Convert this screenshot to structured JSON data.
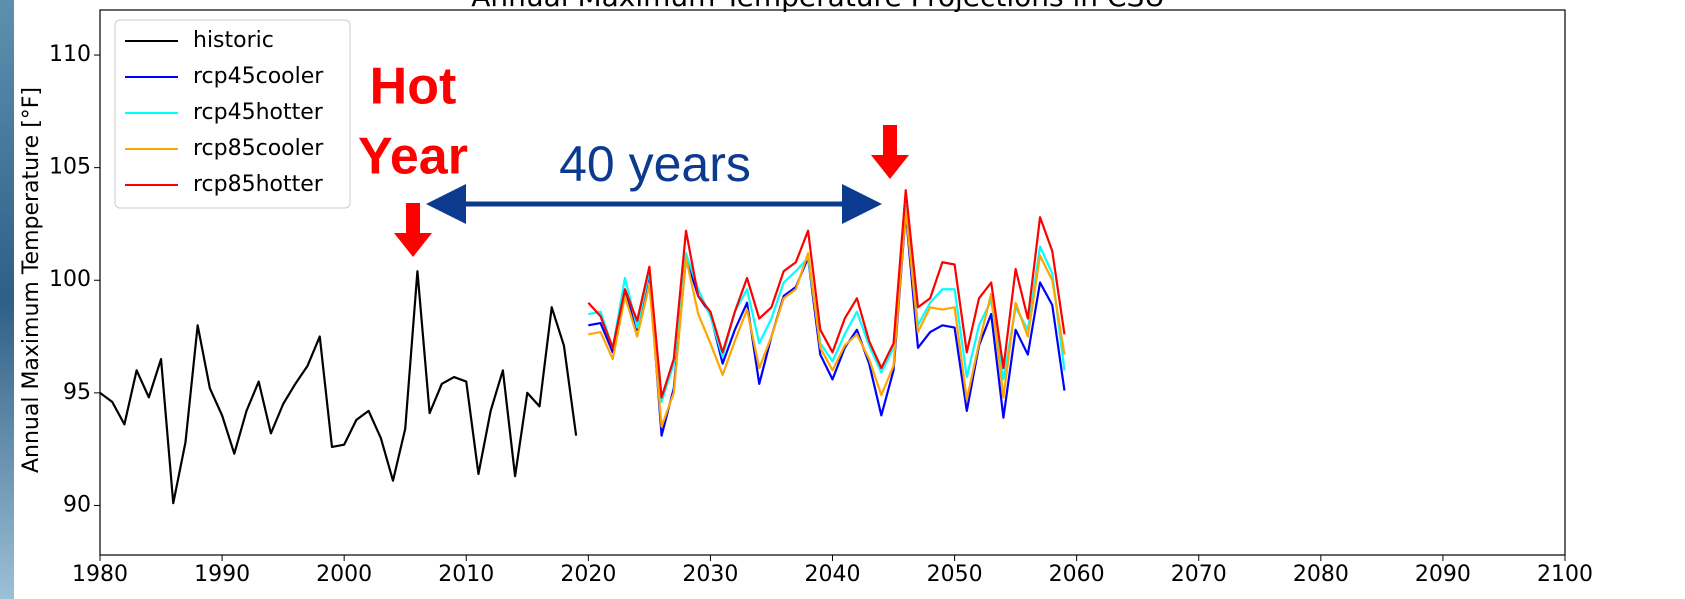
{
  "chart_data": {
    "type": "line",
    "title": "Annual Maximum Temperature Projections in CSU",
    "y_label": "Annual Maximum Temperature [°F]",
    "annotations": [
      "Hot",
      "Year",
      "40 years"
    ],
    "x": [
      1980,
      1981,
      1982,
      1983,
      1984,
      1985,
      1986,
      1987,
      1988,
      1989,
      1990,
      1991,
      1992,
      1993,
      1994,
      1995,
      1996,
      1997,
      1998,
      1999,
      2000,
      2001,
      2002,
      2003,
      2004,
      2005,
      2006,
      2007,
      2008,
      2009,
      2010,
      2011,
      2012,
      2013,
      2014,
      2015,
      2016,
      2017,
      2018,
      2019,
      2020,
      2021,
      2022,
      2023,
      2024,
      2025,
      2026,
      2027,
      2028,
      2029,
      2030,
      2031,
      2032,
      2033,
      2034,
      2035,
      2036,
      2037,
      2038,
      2039,
      2040,
      2041,
      2042,
      2043,
      2044,
      2045,
      2046,
      2047,
      2048,
      2049,
      2050,
      2051,
      2052,
      2053,
      2054,
      2055,
      2056,
      2057,
      2058,
      2059
    ],
    "series": [
      {
        "name": "historic",
        "color": "#000000",
        "values": [
          95.0,
          94.6,
          93.6,
          96.0,
          94.8,
          96.5,
          90.1,
          92.8,
          98.0,
          95.2,
          94.0,
          92.3,
          94.2,
          95.5,
          93.2,
          94.5,
          95.4,
          96.2,
          97.5,
          92.6,
          92.7,
          93.8,
          94.2,
          93.0,
          91.1,
          93.4,
          100.4,
          94.1,
          95.4,
          95.7,
          95.5,
          91.4,
          94.2,
          96.0,
          91.3,
          95.0,
          94.4,
          98.8,
          97.1,
          93.1,
          null,
          null,
          null,
          null,
          null,
          null,
          null,
          null,
          null,
          null,
          null,
          null,
          null,
          null,
          null,
          null,
          null,
          null,
          null,
          null,
          null,
          null,
          null,
          null,
          null,
          null,
          null,
          null,
          null,
          null,
          null,
          null,
          null,
          null,
          null,
          null,
          null,
          null,
          null,
          null
        ]
      },
      {
        "name": "rcp45cooler",
        "color": "#0000ff",
        "values": [
          null,
          null,
          null,
          null,
          null,
          null,
          null,
          null,
          null,
          null,
          null,
          null,
          null,
          null,
          null,
          null,
          null,
          null,
          null,
          null,
          null,
          null,
          null,
          null,
          null,
          null,
          null,
          null,
          null,
          null,
          null,
          null,
          null,
          null,
          null,
          null,
          null,
          null,
          null,
          null,
          98.0,
          98.1,
          96.8,
          99.4,
          97.8,
          100.3,
          93.1,
          95.2,
          101.0,
          99.3,
          98.5,
          96.3,
          97.8,
          99.0,
          95.4,
          97.5,
          99.3,
          99.7,
          101.0,
          96.7,
          95.6,
          97.0,
          97.8,
          96.3,
          94.0,
          96.0,
          103.0,
          97.0,
          97.7,
          98.0,
          97.9,
          94.2,
          97.1,
          98.5,
          93.9,
          97.8,
          96.7,
          99.9,
          98.9,
          95.1
        ]
      },
      {
        "name": "rcp45hotter",
        "color": "#00ffff",
        "values": [
          null,
          null,
          null,
          null,
          null,
          null,
          null,
          null,
          null,
          null,
          null,
          null,
          null,
          null,
          null,
          null,
          null,
          null,
          null,
          null,
          null,
          null,
          null,
          null,
          null,
          null,
          null,
          null,
          null,
          null,
          null,
          null,
          null,
          null,
          null,
          null,
          null,
          null,
          null,
          null,
          98.5,
          98.6,
          97.0,
          100.1,
          97.9,
          100.4,
          94.6,
          96.3,
          101.2,
          99.6,
          98.4,
          96.6,
          98.6,
          99.6,
          97.2,
          98.3,
          99.9,
          100.4,
          101.0,
          97.2,
          96.4,
          97.6,
          98.6,
          97.1,
          95.9,
          97.0,
          103.3,
          98.0,
          99.0,
          99.6,
          99.6,
          95.7,
          98.0,
          99.1,
          95.6,
          98.8,
          97.8,
          101.5,
          100.3,
          96.0
        ]
      },
      {
        "name": "rcp85cooler",
        "color": "#ffa500",
        "values": [
          null,
          null,
          null,
          null,
          null,
          null,
          null,
          null,
          null,
          null,
          null,
          null,
          null,
          null,
          null,
          null,
          null,
          null,
          null,
          null,
          null,
          null,
          null,
          null,
          null,
          null,
          null,
          null,
          null,
          null,
          null,
          null,
          null,
          null,
          null,
          null,
          null,
          null,
          null,
          null,
          97.6,
          97.7,
          96.5,
          99.3,
          97.5,
          99.8,
          93.5,
          95.0,
          101.0,
          98.5,
          97.2,
          95.8,
          97.3,
          98.7,
          96.1,
          97.5,
          99.2,
          99.6,
          101.2,
          97.0,
          96.0,
          97.1,
          97.6,
          96.5,
          94.9,
          96.2,
          103.1,
          97.7,
          98.8,
          98.7,
          98.8,
          94.7,
          97.2,
          99.4,
          94.8,
          99.0,
          97.5,
          101.1,
          100.0,
          96.7
        ]
      },
      {
        "name": "rcp85hotter",
        "color": "#ff0000",
        "values": [
          null,
          null,
          null,
          null,
          null,
          null,
          null,
          null,
          null,
          null,
          null,
          null,
          null,
          null,
          null,
          null,
          null,
          null,
          null,
          null,
          null,
          null,
          null,
          null,
          null,
          null,
          null,
          null,
          null,
          null,
          null,
          null,
          null,
          null,
          null,
          null,
          null,
          null,
          null,
          null,
          99.0,
          98.4,
          97.0,
          99.6,
          98.2,
          100.6,
          94.8,
          96.5,
          102.2,
          99.3,
          98.6,
          96.8,
          98.6,
          100.1,
          98.3,
          98.8,
          100.4,
          100.8,
          102.2,
          97.8,
          96.8,
          98.3,
          99.2,
          97.3,
          96.1,
          97.2,
          104.0,
          98.8,
          99.2,
          100.8,
          100.7,
          96.8,
          99.2,
          99.9,
          96.1,
          100.5,
          98.3,
          102.8,
          101.3,
          97.6
        ]
      }
    ],
    "xlim": [
      1980,
      2100
    ],
    "xticks": [
      1980,
      1990,
      2000,
      2010,
      2020,
      2030,
      2040,
      2050,
      2060,
      2070,
      2080,
      2090,
      2100
    ],
    "ylim": [
      87.8,
      112
    ],
    "yticks": [
      90,
      95,
      100,
      105,
      110
    ],
    "grid": false,
    "legend": "upper left"
  }
}
